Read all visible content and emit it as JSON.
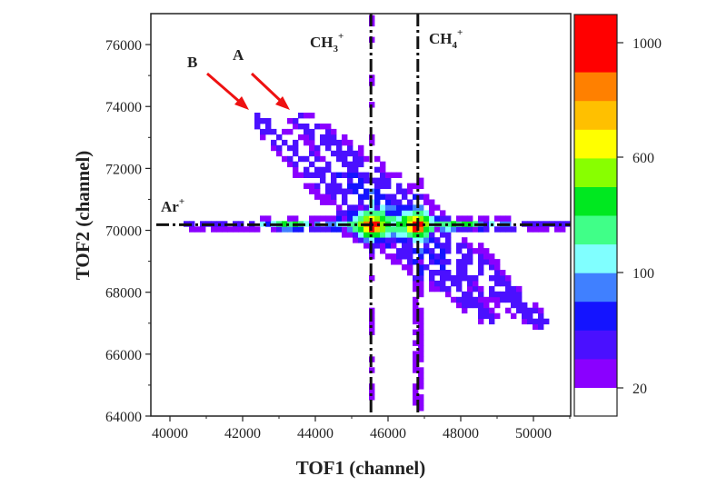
{
  "chart_data": {
    "type": "heatmap",
    "xlabel": "TOF1 (channel)",
    "ylabel": "TOF2 (channel)",
    "xlim": [
      39475,
      51025
    ],
    "ylim": [
      64000,
      77000
    ],
    "xticks": [
      "40000",
      "42000",
      "44000",
      "46000",
      "48000",
      "50000"
    ],
    "yticks": [
      "64000",
      "66000",
      "68000",
      "70000",
      "72000",
      "74000",
      "76000"
    ],
    "grid": false,
    "colorbar": {
      "ticks": [
        "20",
        "100",
        "600",
        "1000"
      ],
      "colors": [
        "#ffffff",
        "#8a00ff",
        "#4a10ff",
        "#1414ff",
        "#4080ff",
        "#80ffff",
        "#40ff88",
        "#00e820",
        "#88ff00",
        "#ffff00",
        "#ffc000",
        "#ff8000",
        "#ff0000"
      ],
      "position": "right"
    },
    "reference_lines": [
      {
        "orientation": "horizontal",
        "value": 70180,
        "label": "Ar",
        "charge": "+"
      },
      {
        "orientation": "vertical",
        "value": 45530,
        "label": "CH",
        "sub": "3",
        "charge": "+"
      },
      {
        "orientation": "vertical",
        "value": 46820,
        "label": "CH",
        "sub": "4",
        "charge": "+"
      }
    ],
    "peaks": [
      {
        "x": 45550,
        "y": 70180,
        "count": 1100
      },
      {
        "x": 46800,
        "y": 70180,
        "count": 1100
      },
      {
        "x": 43200,
        "y": 70180,
        "count": 250
      },
      {
        "x": 48100,
        "y": 70180,
        "count": 250
      }
    ],
    "streaks": [
      {
        "label": "A",
        "from": [
          43400,
          73800
        ],
        "to": [
          50300,
          66900
        ],
        "count": 30
      },
      {
        "label": "B",
        "from": [
          42300,
          73700
        ],
        "to": [
          48900,
          67100
        ],
        "count": 30
      }
    ],
    "annotation_arrow_color": "#ee1111"
  }
}
